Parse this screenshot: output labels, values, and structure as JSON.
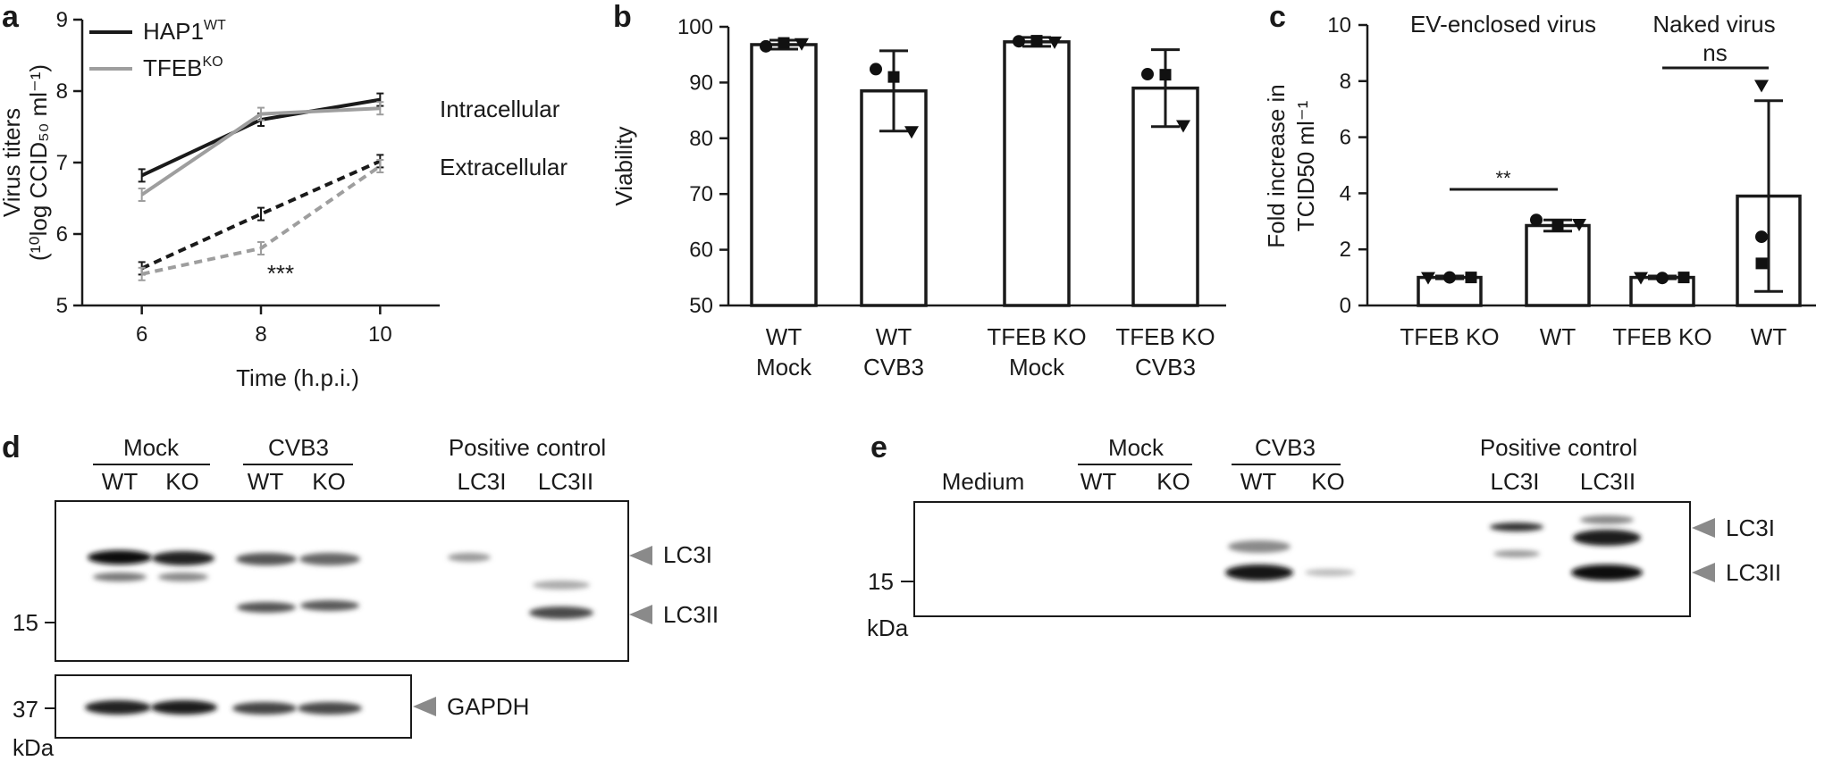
{
  "panels": {
    "a": "a",
    "b": "b",
    "c": "c",
    "d": "d",
    "e": "e"
  },
  "chart_data": [
    {
      "id": "a",
      "type": "line",
      "xlabel": "Time (h.p.i.)",
      "ylabel_line1": "Virus titers",
      "ylabel_line2": "(¹⁰log CCID₅₀ ml⁻¹)",
      "x": [
        6,
        8,
        10
      ],
      "xlim": [
        5,
        11
      ],
      "ylim": [
        5,
        9
      ],
      "xticks": [
        "6",
        "8",
        "10"
      ],
      "yticks": [
        "5",
        "6",
        "7",
        "8",
        "9"
      ],
      "legend": [
        {
          "base": "HAP1",
          "sup": "WT",
          "color": "#1a1a1a"
        },
        {
          "base": "TFEB",
          "sup": "KO",
          "color": "#9e9e9e"
        }
      ],
      "series": [
        {
          "group": "Intracellular",
          "line": "solid",
          "color": "#1a1a1a",
          "values": [
            6.82,
            7.6,
            7.88
          ]
        },
        {
          "group": "Intracellular",
          "line": "solid",
          "color": "#9e9e9e",
          "values": [
            6.55,
            7.68,
            7.76
          ]
        },
        {
          "group": "Extracellular",
          "line": "dashed",
          "color": "#1a1a1a",
          "values": [
            5.52,
            6.28,
            7.02
          ]
        },
        {
          "group": "Extracellular",
          "line": "dashed",
          "color": "#9e9e9e",
          "values": [
            5.44,
            5.8,
            6.95
          ]
        }
      ],
      "annotations": {
        "intracellular": "Intracellular",
        "extracellular": "Extracellular",
        "sig": "***"
      }
    },
    {
      "id": "b",
      "type": "bar",
      "ylabel": "Viability",
      "ylim": [
        50,
        100
      ],
      "yticks": [
        "50",
        "60",
        "70",
        "80",
        "90",
        "100"
      ],
      "categories": [
        {
          "line1": "WT",
          "line2": "Mock"
        },
        {
          "line1": "WT",
          "line2": "CVB3"
        },
        {
          "line1": "TFEB KO",
          "line2": "Mock"
        },
        {
          "line1": "TFEB KO",
          "line2": "CVB3"
        }
      ],
      "values": [
        96.8,
        88.5,
        97.3,
        89.0
      ],
      "errors": [
        0.8,
        7.2,
        0.8,
        6.9
      ],
      "points": [
        [
          96.5,
          97.1,
          97.0
        ],
        [
          92.4,
          91.0,
          81.2
        ],
        [
          97.4,
          97.5,
          97.3
        ],
        [
          91.5,
          91.4,
          82.3
        ]
      ]
    },
    {
      "id": "c",
      "type": "bar",
      "ylabel_line1": "Fold increase in",
      "ylabel_line2": "TCID50 ml⁻¹",
      "ylim": [
        0,
        10
      ],
      "yticks": [
        "0",
        "2",
        "4",
        "6",
        "8",
        "10"
      ],
      "group_labels": [
        "EV-enclosed virus",
        "Naked virus"
      ],
      "categories": [
        "TFEB KO",
        "WT",
        "TFEB KO",
        "WT"
      ],
      "values": [
        1.0,
        2.85,
        1.0,
        3.9
      ],
      "errors": [
        0.05,
        0.2,
        0.05,
        3.4
      ],
      "points": [
        [
          1.0,
          1.0,
          1.0
        ],
        [
          3.05,
          2.85,
          2.9
        ],
        [
          1.0,
          0.98,
          1.0
        ],
        [
          7.85,
          2.45,
          1.5
        ]
      ],
      "significance": [
        "**",
        "ns"
      ]
    }
  ],
  "blot_d": {
    "group_headers": [
      "Mock",
      "CVB3",
      "Positive control"
    ],
    "lanes": [
      "WT",
      "KO",
      "WT",
      "KO",
      "LC3I",
      "LC3II"
    ],
    "top_markers": [
      "LC3I",
      "LC3II"
    ],
    "bottom_marker": "GAPDH",
    "mw_top": "15",
    "mw_bottom": "37",
    "unit": "kDa"
  },
  "blot_e": {
    "group_headers": [
      "Mock",
      "CVB3",
      "Positive control"
    ],
    "lanes": [
      "Medium",
      "WT",
      "KO",
      "WT",
      "KO",
      "LC3I",
      "LC3II"
    ],
    "markers": [
      "LC3I",
      "LC3II"
    ],
    "mw": "15",
    "unit": "kDa"
  }
}
